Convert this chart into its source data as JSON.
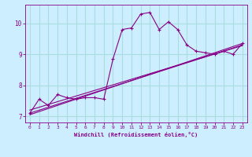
{
  "title": "",
  "xlabel": "Windchill (Refroidissement éolien,°C)",
  "ylabel": "",
  "bg_color": "#cceeff",
  "line_color": "#880088",
  "grid_color": "#aadddd",
  "xlim": [
    -0.5,
    23.5
  ],
  "ylim": [
    6.8,
    10.6
  ],
  "xticks": [
    0,
    1,
    2,
    3,
    4,
    5,
    6,
    7,
    8,
    9,
    10,
    11,
    12,
    13,
    14,
    15,
    16,
    17,
    18,
    19,
    20,
    21,
    22,
    23
  ],
  "yticks": [
    7,
    8,
    9,
    10
  ],
  "raw_x": [
    0,
    1,
    2,
    3,
    4,
    5,
    6,
    7,
    8,
    9,
    10,
    11,
    12,
    13,
    14,
    15,
    16,
    17,
    18,
    19,
    20,
    21,
    22,
    23
  ],
  "raw_y": [
    7.1,
    7.55,
    7.35,
    7.7,
    7.6,
    7.55,
    7.6,
    7.6,
    7.55,
    8.85,
    9.8,
    9.85,
    10.3,
    10.35,
    9.8,
    10.05,
    9.8,
    9.3,
    9.1,
    9.05,
    9.0,
    9.1,
    9.0,
    9.35
  ],
  "line1_x": [
    0,
    23
  ],
  "line1_y": [
    7.05,
    9.35
  ],
  "line2_x": [
    0,
    23
  ],
  "line2_y": [
    7.1,
    9.3
  ],
  "line3_x": [
    0,
    23
  ],
  "line3_y": [
    7.2,
    9.28
  ]
}
